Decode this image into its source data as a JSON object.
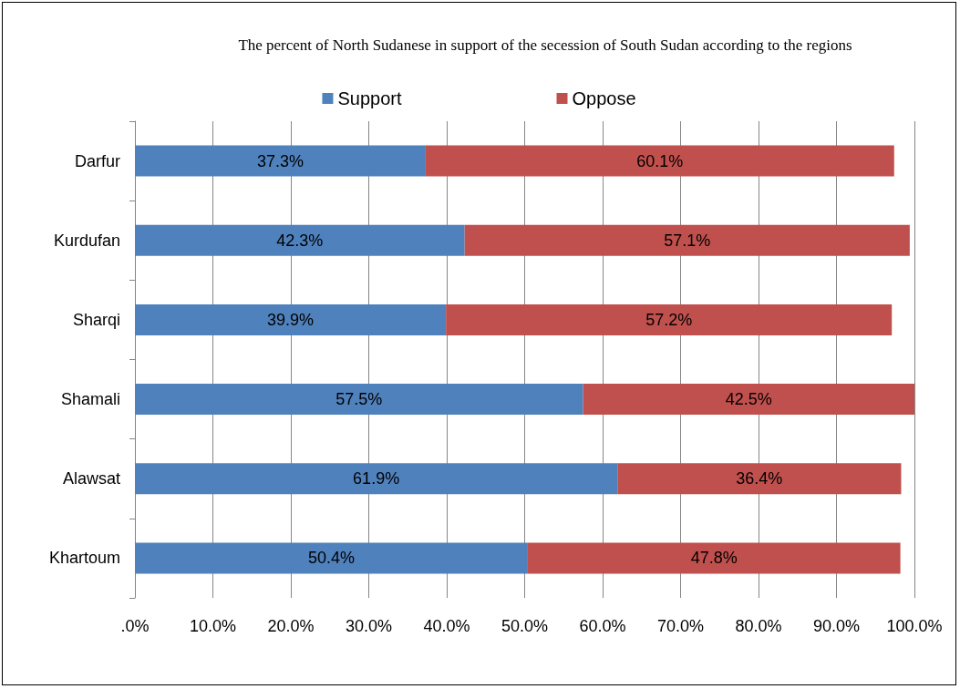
{
  "chart_data": {
    "type": "bar",
    "orientation": "horizontal",
    "stacked": true,
    "title": "The percent of North Sudanese in support of the secession of South Sudan according to the regions",
    "categories": [
      "Darfur",
      "Kurdufan",
      "Sharqi",
      "Shamali",
      "Alawsat",
      "Khartoum"
    ],
    "series": [
      {
        "name": "Support",
        "color": "#4f81bd",
        "values": [
          37.3,
          42.3,
          39.9,
          57.5,
          61.9,
          50.4
        ],
        "value_labels": [
          "37.3%",
          "42.3%",
          "39.9%",
          "57.5%",
          "61.9%",
          "50.4%"
        ]
      },
      {
        "name": "Oppose",
        "color": "#c0504d",
        "values": [
          60.1,
          57.1,
          57.2,
          42.5,
          36.4,
          47.8
        ],
        "value_labels": [
          "60.1%",
          "57.1%",
          "57.2%",
          "42.5%",
          "36.4%",
          "47.8%"
        ]
      }
    ],
    "xlim": [
      0,
      100
    ],
    "xticks": [
      {
        "value": 0,
        "label": ".0%"
      },
      {
        "value": 10,
        "label": "10.0%"
      },
      {
        "value": 20,
        "label": "20.0%"
      },
      {
        "value": 30,
        "label": "30.0%"
      },
      {
        "value": 40,
        "label": "40.0%"
      },
      {
        "value": 50,
        "label": "50.0%"
      },
      {
        "value": 60,
        "label": "60.0%"
      },
      {
        "value": 70,
        "label": "70.0%"
      },
      {
        "value": 80,
        "label": "80.0%"
      },
      {
        "value": 90,
        "label": "90.0%"
      },
      {
        "value": 100,
        "label": "100.0%"
      }
    ],
    "grid": "x",
    "legend": "top"
  }
}
